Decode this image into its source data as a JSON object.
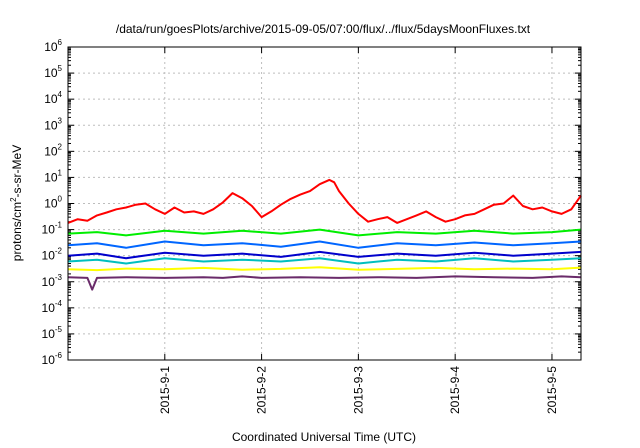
{
  "chart_data": {
    "type": "line",
    "title": "/data/run/goesPlots/archive/2015-09-05/07:00/flux/../flux/5daysMoonFluxes.txt",
    "xlabel": "Coordinated Universal Time (UTC)",
    "ylabel_parts": [
      "protons/cm",
      "2",
      "-s-sr-MeV"
    ],
    "y_scale": "log",
    "ylim": [
      1e-06,
      1000000.0
    ],
    "y_ticks": [
      {
        "base": "10",
        "exp": "6",
        "value": 1000000.0
      },
      {
        "base": "10",
        "exp": "5",
        "value": 100000.0
      },
      {
        "base": "10",
        "exp": "4",
        "value": 10000.0
      },
      {
        "base": "10",
        "exp": "3",
        "value": 1000.0
      },
      {
        "base": "10",
        "exp": "2",
        "value": 100.0
      },
      {
        "base": "10",
        "exp": "1",
        "value": 10.0
      },
      {
        "base": "10",
        "exp": "0",
        "value": 1.0
      },
      {
        "base": "10",
        "exp": "-1",
        "value": 0.1
      },
      {
        "base": "10",
        "exp": "-2",
        "value": 0.01
      },
      {
        "base": "10",
        "exp": "-3",
        "value": 0.001
      },
      {
        "base": "10",
        "exp": "-4",
        "value": 0.0001
      },
      {
        "base": "10",
        "exp": "-5",
        "value": 1e-05
      },
      {
        "base": "10",
        "exp": "-6",
        "value": 1e-06
      }
    ],
    "xlim": [
      0.0,
      5.3
    ],
    "x_ticks": [
      {
        "label": "2015-9-1",
        "value": 1
      },
      {
        "label": "2015-9-2",
        "value": 2
      },
      {
        "label": "2015-9-3",
        "value": 3
      },
      {
        "label": "2015-9-4",
        "value": 4
      },
      {
        "label": "2015-9-5",
        "value": 5
      }
    ],
    "grid": true,
    "series": [
      {
        "color": "#6a2b6a",
        "points": [
          [
            0.0,
            0.0015
          ],
          [
            0.2,
            0.0014
          ],
          [
            0.25,
            0.0005
          ],
          [
            0.3,
            0.0014
          ],
          [
            0.6,
            0.0015
          ],
          [
            1.0,
            0.0014
          ],
          [
            1.4,
            0.0015
          ],
          [
            1.6,
            0.0014
          ],
          [
            1.8,
            0.0016
          ],
          [
            2.0,
            0.0014
          ],
          [
            2.4,
            0.0015
          ],
          [
            2.8,
            0.0014
          ],
          [
            3.2,
            0.0015
          ],
          [
            3.6,
            0.0014
          ],
          [
            4.0,
            0.0016
          ],
          [
            4.4,
            0.0015
          ],
          [
            4.8,
            0.0014
          ],
          [
            5.1,
            0.0016
          ],
          [
            5.3,
            0.0015
          ]
        ]
      },
      {
        "color": "#ffff00",
        "points": [
          [
            0.0,
            0.003
          ],
          [
            0.3,
            0.0028
          ],
          [
            0.6,
            0.0032
          ],
          [
            1.0,
            0.003
          ],
          [
            1.4,
            0.0034
          ],
          [
            1.8,
            0.0029
          ],
          [
            2.2,
            0.0031
          ],
          [
            2.6,
            0.0036
          ],
          [
            3.0,
            0.0029
          ],
          [
            3.4,
            0.0031
          ],
          [
            3.8,
            0.0034
          ],
          [
            4.2,
            0.003
          ],
          [
            4.6,
            0.0032
          ],
          [
            5.0,
            0.003
          ],
          [
            5.3,
            0.0035
          ]
        ]
      },
      {
        "color": "#00bfbf",
        "points": [
          [
            0.0,
            0.006
          ],
          [
            0.3,
            0.007
          ],
          [
            0.6,
            0.005
          ],
          [
            1.0,
            0.008
          ],
          [
            1.4,
            0.006
          ],
          [
            1.8,
            0.007
          ],
          [
            2.2,
            0.006
          ],
          [
            2.6,
            0.008
          ],
          [
            3.0,
            0.005
          ],
          [
            3.4,
            0.007
          ],
          [
            3.8,
            0.006
          ],
          [
            4.2,
            0.008
          ],
          [
            4.6,
            0.006
          ],
          [
            5.0,
            0.007
          ],
          [
            5.3,
            0.008
          ]
        ]
      },
      {
        "color": "#0000cc",
        "points": [
          [
            0.0,
            0.01
          ],
          [
            0.3,
            0.012
          ],
          [
            0.6,
            0.008
          ],
          [
            1.0,
            0.013
          ],
          [
            1.4,
            0.01
          ],
          [
            1.8,
            0.012
          ],
          [
            2.2,
            0.009
          ],
          [
            2.6,
            0.014
          ],
          [
            3.0,
            0.009
          ],
          [
            3.4,
            0.012
          ],
          [
            3.8,
            0.01
          ],
          [
            4.2,
            0.013
          ],
          [
            4.6,
            0.01
          ],
          [
            5.0,
            0.012
          ],
          [
            5.3,
            0.014
          ]
        ]
      },
      {
        "color": "#0066ff",
        "points": [
          [
            0.0,
            0.025
          ],
          [
            0.3,
            0.03
          ],
          [
            0.6,
            0.02
          ],
          [
            1.0,
            0.035
          ],
          [
            1.4,
            0.025
          ],
          [
            1.8,
            0.03
          ],
          [
            2.2,
            0.022
          ],
          [
            2.6,
            0.035
          ],
          [
            3.0,
            0.02
          ],
          [
            3.4,
            0.03
          ],
          [
            3.8,
            0.025
          ],
          [
            4.2,
            0.032
          ],
          [
            4.6,
            0.025
          ],
          [
            5.0,
            0.03
          ],
          [
            5.3,
            0.035
          ]
        ]
      },
      {
        "color": "#00ee00",
        "points": [
          [
            0.0,
            0.07
          ],
          [
            0.3,
            0.08
          ],
          [
            0.6,
            0.06
          ],
          [
            1.0,
            0.09
          ],
          [
            1.4,
            0.07
          ],
          [
            1.8,
            0.09
          ],
          [
            2.2,
            0.07
          ],
          [
            2.6,
            0.1
          ],
          [
            3.0,
            0.06
          ],
          [
            3.4,
            0.08
          ],
          [
            3.8,
            0.07
          ],
          [
            4.2,
            0.09
          ],
          [
            4.6,
            0.07
          ],
          [
            5.0,
            0.08
          ],
          [
            5.3,
            0.1
          ]
        ]
      },
      {
        "color": "#ff0000",
        "points": [
          [
            0.0,
            0.18
          ],
          [
            0.1,
            0.25
          ],
          [
            0.2,
            0.22
          ],
          [
            0.3,
            0.35
          ],
          [
            0.4,
            0.45
          ],
          [
            0.5,
            0.6
          ],
          [
            0.6,
            0.7
          ],
          [
            0.7,
            0.9
          ],
          [
            0.8,
            1.0
          ],
          [
            0.9,
            0.6
          ],
          [
            1.0,
            0.4
          ],
          [
            1.1,
            0.7
          ],
          [
            1.2,
            0.45
          ],
          [
            1.3,
            0.5
          ],
          [
            1.4,
            0.4
          ],
          [
            1.5,
            0.6
          ],
          [
            1.6,
            1.1
          ],
          [
            1.7,
            2.5
          ],
          [
            1.8,
            1.6
          ],
          [
            1.9,
            0.8
          ],
          [
            2.0,
            0.3
          ],
          [
            2.1,
            0.5
          ],
          [
            2.2,
            0.9
          ],
          [
            2.3,
            1.5
          ],
          [
            2.4,
            2.2
          ],
          [
            2.5,
            3.0
          ],
          [
            2.6,
            5.5
          ],
          [
            2.7,
            8.0
          ],
          [
            2.75,
            6.5
          ],
          [
            2.8,
            3.0
          ],
          [
            2.9,
            1.0
          ],
          [
            3.0,
            0.4
          ],
          [
            3.1,
            0.2
          ],
          [
            3.2,
            0.25
          ],
          [
            3.3,
            0.3
          ],
          [
            3.4,
            0.18
          ],
          [
            3.5,
            0.25
          ],
          [
            3.6,
            0.35
          ],
          [
            3.7,
            0.5
          ],
          [
            3.8,
            0.3
          ],
          [
            3.9,
            0.2
          ],
          [
            4.0,
            0.25
          ],
          [
            4.1,
            0.35
          ],
          [
            4.2,
            0.4
          ],
          [
            4.3,
            0.6
          ],
          [
            4.4,
            0.9
          ],
          [
            4.5,
            1.0
          ],
          [
            4.6,
            2.0
          ],
          [
            4.7,
            0.8
          ],
          [
            4.8,
            0.6
          ],
          [
            4.9,
            0.7
          ],
          [
            5.0,
            0.5
          ],
          [
            5.1,
            0.4
          ],
          [
            5.2,
            0.6
          ],
          [
            5.3,
            2.0
          ]
        ]
      }
    ]
  }
}
